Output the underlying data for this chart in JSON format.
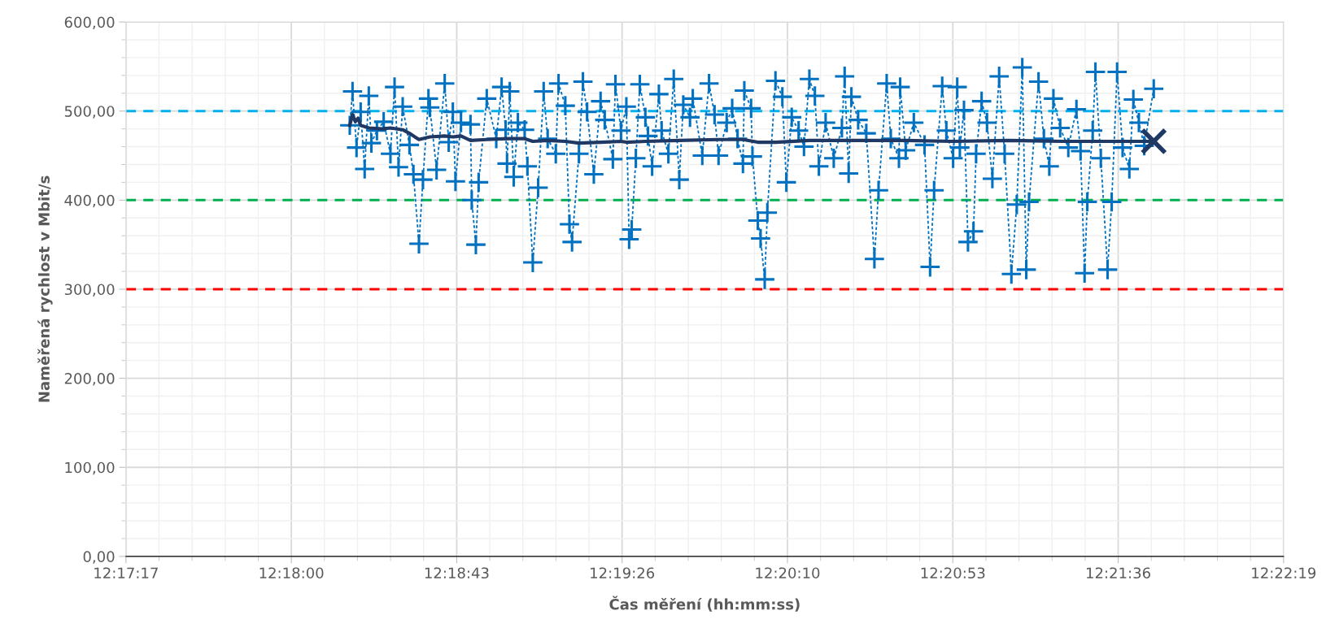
{
  "chart_data": {
    "type": "line",
    "xlabel": "Čas měření (hh:mm:ss)",
    "ylabel": "Naměřená rychlost v Mbit/s",
    "xlim": [
      12.288,
      12.372
    ],
    "xticks": [
      {
        "value": 12.288,
        "label": "12:17:17"
      },
      {
        "value": 12.3,
        "label": "12:18:00"
      },
      {
        "value": 12.312,
        "label": "12:18:43"
      },
      {
        "value": 12.324,
        "label": "12:19:26"
      },
      {
        "value": 12.336,
        "label": "12:20:10"
      },
      {
        "value": 12.348,
        "label": "12:20:53"
      },
      {
        "value": 12.36,
        "label": "12:21:36"
      },
      {
        "value": 12.372,
        "label": "12:22:19"
      }
    ],
    "ylim": [
      0,
      600
    ],
    "yticks": [
      {
        "value": 0,
        "label": "0,00"
      },
      {
        "value": 100,
        "label": "100,00"
      },
      {
        "value": 200,
        "label": "200,00"
      },
      {
        "value": 300,
        "label": "300,00"
      },
      {
        "value": 400,
        "label": "400,00"
      },
      {
        "value": 500,
        "label": "500,00"
      },
      {
        "value": 600,
        "label": "600,00"
      }
    ],
    "grid": true,
    "legend": false,
    "ref_lines": [
      {
        "axis": "y",
        "value": 500,
        "color": "#00b0f0",
        "line_style": "dashed"
      },
      {
        "axis": "y",
        "value": 400,
        "color": "#00b050",
        "line_style": "dashed"
      },
      {
        "axis": "y",
        "value": 300,
        "color": "#ff0000",
        "line_style": "dashed"
      }
    ],
    "series": [
      {
        "color": "#0070c0",
        "marker": "cross",
        "line_style": "dotted",
        "x": [
          12.30424,
          12.30444,
          12.30473,
          12.30503,
          12.30532,
          12.30562,
          12.30581,
          12.30621,
          12.3067,
          12.30719,
          12.30749,
          12.30778,
          12.30808,
          12.30857,
          12.30886,
          12.30926,
          12.30955,
          12.30995,
          12.31005,
          12.31054,
          12.31113,
          12.31142,
          12.31172,
          12.31191,
          12.31231,
          12.313,
          12.31309,
          12.31339,
          12.31359,
          12.31418,
          12.31487,
          12.31526,
          12.31555,
          12.31565,
          12.31585,
          12.31614,
          12.31644,
          12.31693,
          12.31713,
          12.31752,
          12.31791,
          12.31831,
          12.3186,
          12.31919,
          12.31939,
          12.31988,
          12.32018,
          12.32037,
          12.32087,
          12.32116,
          12.32146,
          12.32195,
          12.32244,
          12.32274,
          12.32333,
          12.32352,
          12.32392,
          12.32431,
          12.32451,
          12.3247,
          12.325,
          12.32529,
          12.32569,
          12.32588,
          12.32618,
          12.32667,
          12.32687,
          12.32736,
          12.32775,
          12.32815,
          12.32844,
          12.32893,
          12.32913,
          12.32982,
          12.33031,
          12.33071,
          12.331,
          12.33159,
          12.33199,
          12.33238,
          12.33277,
          12.33287,
          12.33336,
          12.33346,
          12.33385,
          12.33405,
          12.33435,
          12.33454,
          12.33513,
          12.33563,
          12.33592,
          12.33631,
          12.33681,
          12.3372,
          12.33759,
          12.33799,
          12.33828,
          12.33877,
          12.33936,
          12.33995,
          12.34015,
          12.34044,
          12.34064,
          12.34113,
          12.34172,
          12.34231,
          12.34261,
          12.3432,
          12.3435,
          12.34409,
          12.34418,
          12.34458,
          12.34517,
          12.34595,
          12.34635,
          12.34664,
          12.34723,
          12.34753,
          12.34802,
          12.34832,
          12.34851,
          12.34881,
          12.3491,
          12.3495,
          12.34969,
          12.35009,
          12.35048,
          12.35087,
          12.35136,
          12.35176,
          12.35225,
          12.35264,
          12.35304,
          12.35333,
          12.35353,
          12.35422,
          12.35461,
          12.355,
          12.3553,
          12.35579,
          12.35638,
          12.35697,
          12.35727,
          12.35756,
          12.35776,
          12.35815,
          12.35835,
          12.35874,
          12.35923,
          12.35953,
          12.35992,
          12.36032,
          12.36081,
          12.3611,
          12.3615,
          12.36189,
          12.36258
        ],
        "values": [
          484,
          522,
          459,
          499,
          435,
          517,
          464,
          478,
          488,
          452,
          527,
          437,
          505,
          462,
          429,
          351,
          423,
          514,
          504,
          434,
          531,
          465,
          499,
          421,
          487,
          485,
          400,
          350,
          420,
          514,
          469,
          527,
          479,
          441,
          522,
          426,
          487,
          479,
          438,
          330,
          414,
          522,
          469,
          452,
          531,
          506,
          373,
          353,
          452,
          533,
          499,
          429,
          511,
          490,
          446,
          530,
          478,
          505,
          356,
          367,
          447,
          530,
          493,
          472,
          438,
          519,
          478,
          452,
          536,
          423,
          507,
          493,
          514,
          450,
          531,
          496,
          450,
          487,
          503,
          469,
          441,
          523,
          503,
          449,
          377,
          357,
          311,
          386,
          534,
          516,
          420,
          493,
          478,
          460,
          536,
          517,
          438,
          487,
          447,
          481,
          539,
          430,
          516,
          490,
          475,
          334,
          411,
          531,
          469,
          447,
          527,
          456,
          487,
          462,
          325,
          411,
          528,
          478,
          447,
          527,
          459,
          501,
          353,
          365,
          452,
          511,
          487,
          424,
          539,
          452,
          317,
          395,
          549,
          322,
          398,
          533,
          469,
          438,
          514,
          481,
          459,
          502,
          455,
          318,
          398,
          478,
          544,
          447,
          322,
          398,
          544,
          459,
          435,
          513,
          487,
          461,
          525
        ]
      },
      {
        "color": "#203864",
        "marker": "none",
        "line_style": "solid",
        "x": [
          12.30424,
          12.30444,
          12.30464,
          12.30484,
          12.30503,
          12.30562,
          12.3066,
          12.30719,
          12.30808,
          12.30857,
          12.30926,
          12.31005,
          12.31113,
          12.31172,
          12.31231,
          12.313,
          12.31418,
          12.31565,
          12.31693,
          12.31752,
          12.3186,
          12.31988,
          12.32087,
          12.32244,
          12.32392,
          12.32431,
          12.32569,
          12.32815,
          12.331,
          12.33277,
          12.33385,
          12.33513,
          12.33759,
          12.34113,
          12.34458,
          12.348,
          12.352,
          12.356,
          12.36258
        ],
        "values": [
          484,
          496,
          488,
          492,
          484,
          481,
          480,
          481,
          479,
          475,
          468,
          471,
          472,
          471,
          472,
          467,
          468,
          469,
          469,
          466,
          467,
          466,
          464,
          465,
          466,
          465,
          466,
          467,
          468,
          468,
          465,
          465,
          467,
          467,
          467,
          466,
          467,
          466,
          466
        ]
      },
      {
        "type": "scatter",
        "color": "#203864",
        "marker": "cross",
        "x": [
          12.36258
        ],
        "values": [
          466
        ]
      }
    ]
  }
}
